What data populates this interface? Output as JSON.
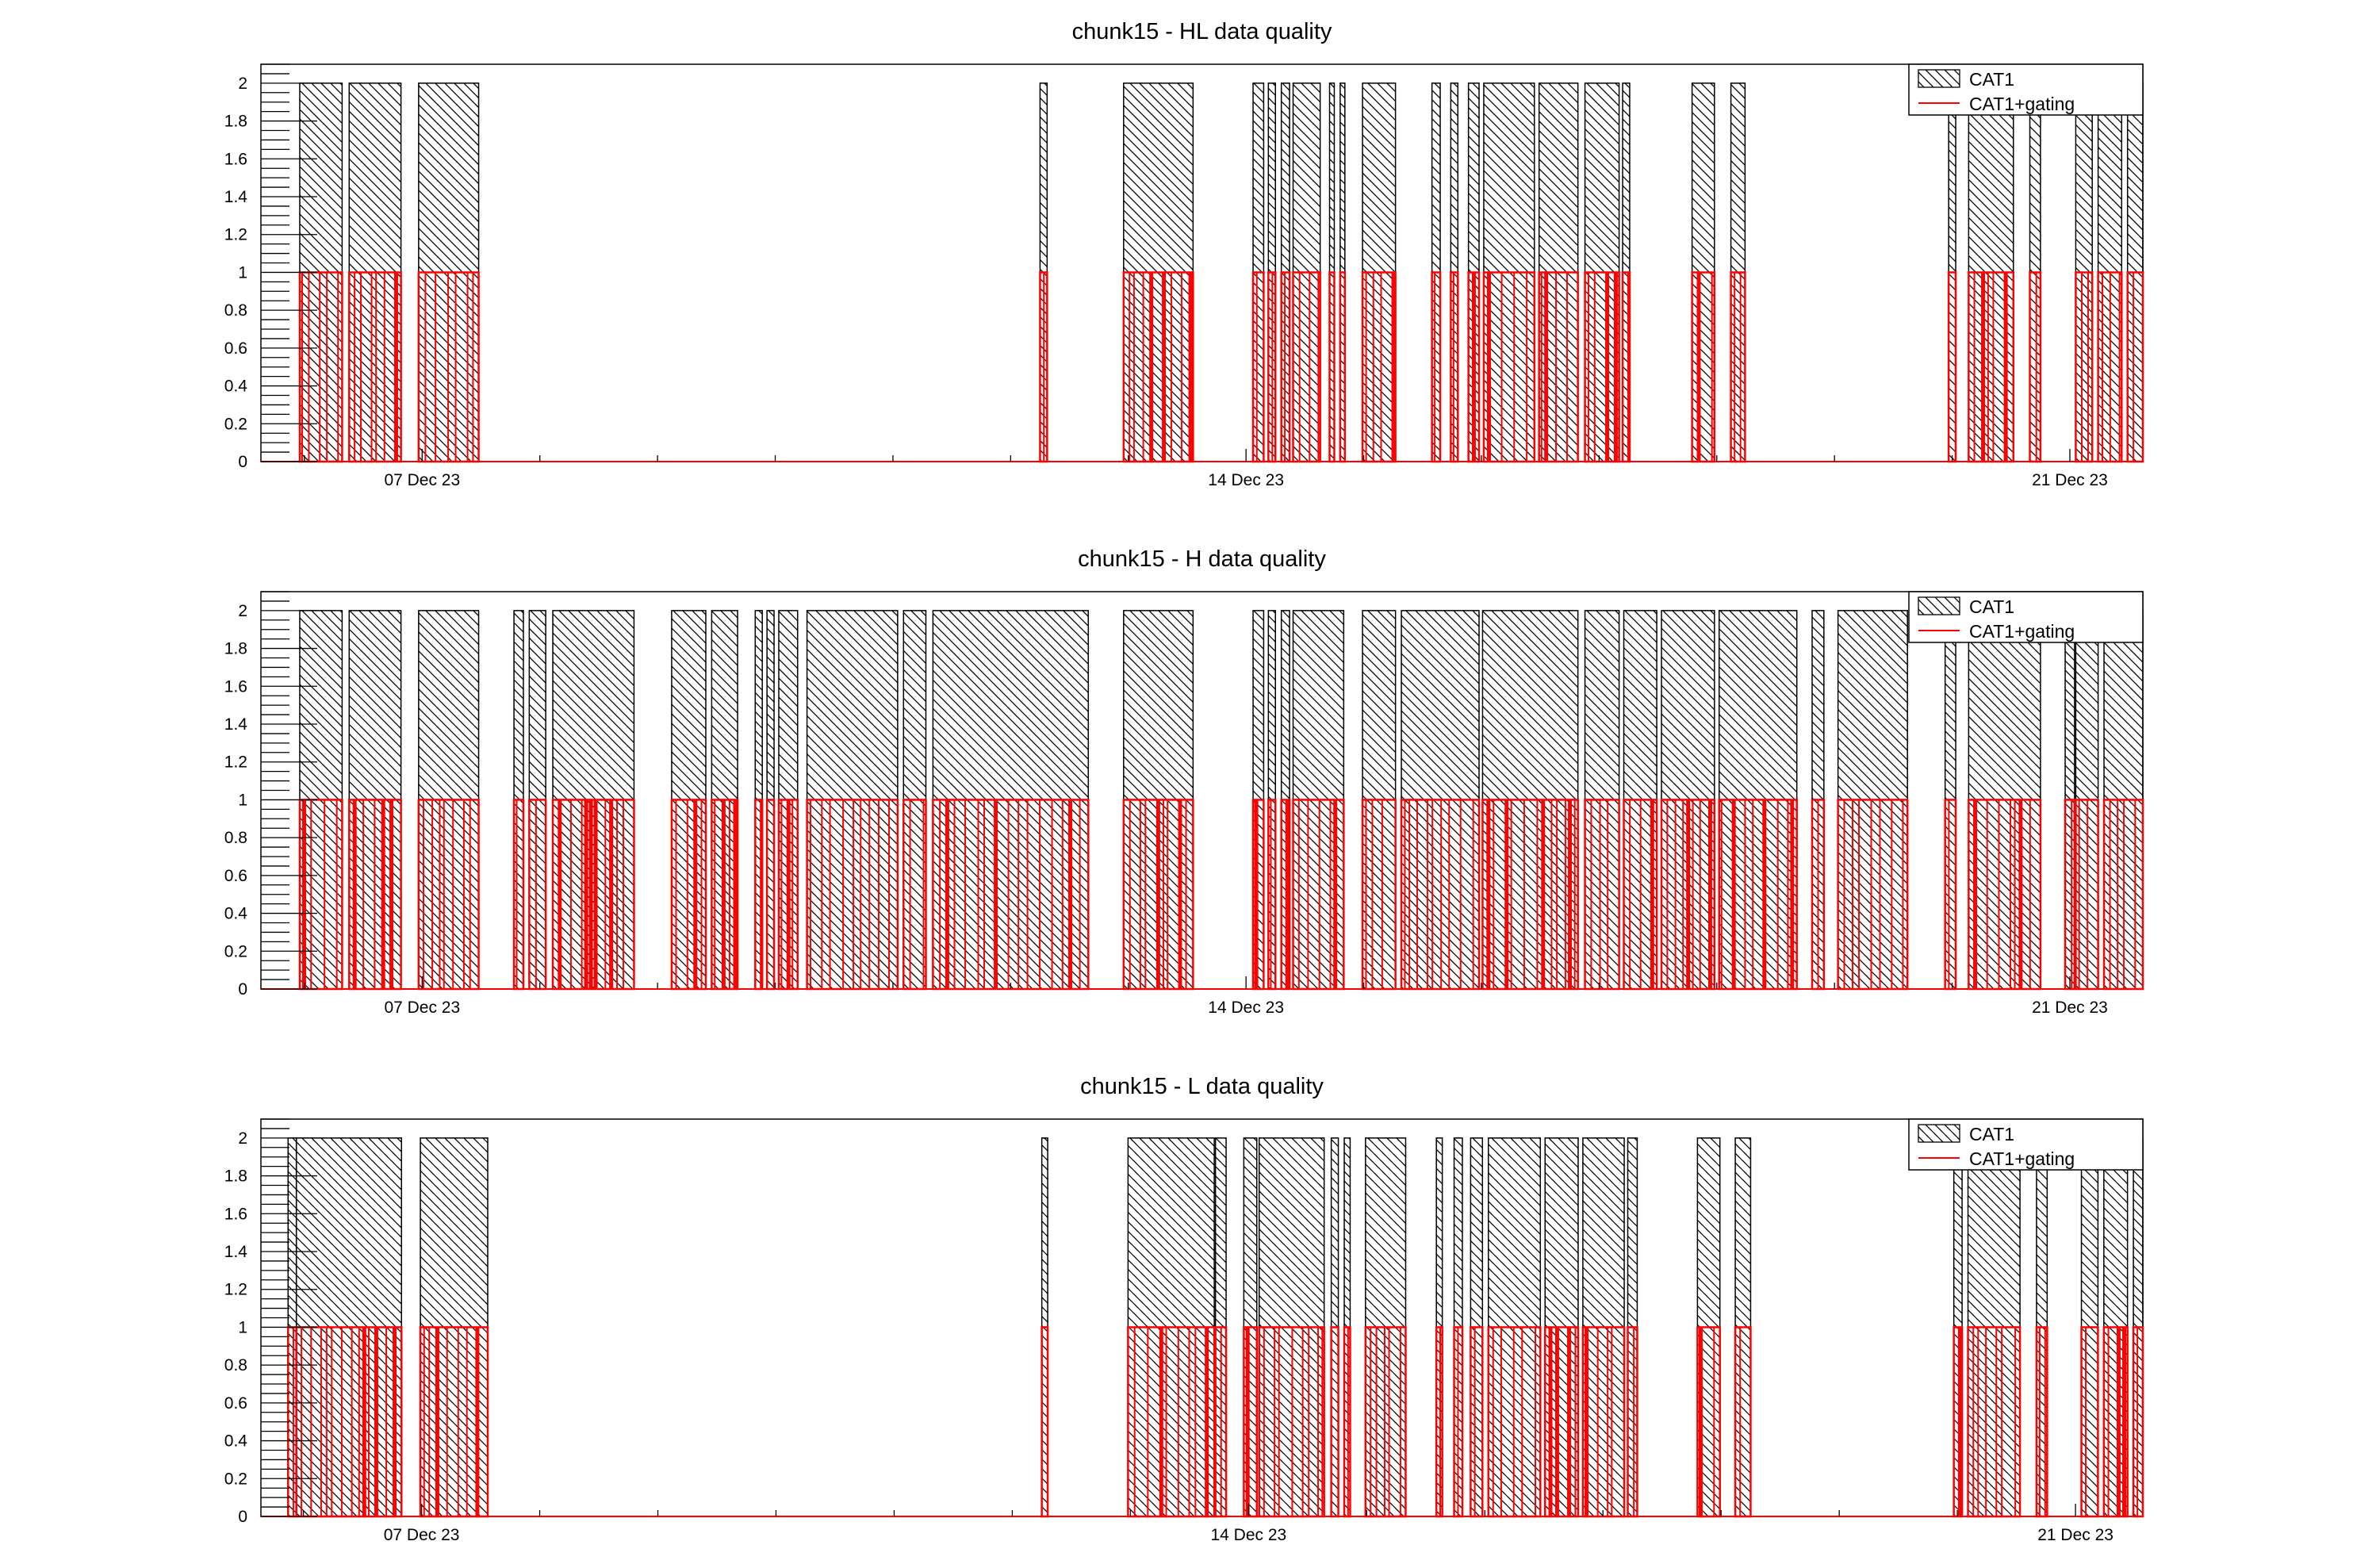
{
  "chart_data": [
    {
      "type": "bar",
      "title": "chunk15 - HL data quality",
      "xlabel": "",
      "ylabel": "",
      "ylim": [
        0,
        2.1
      ],
      "xlim_days": [
        5.63,
        21.62
      ],
      "x_unit": "day of December 2023",
      "yticks": [
        "0",
        "0.2",
        "0.4",
        "0.6",
        "0.8",
        "1",
        "1.2",
        "1.4",
        "1.6",
        "1.8",
        "2"
      ],
      "xticks": [
        {
          "day": 7,
          "label": "07 Dec 23"
        },
        {
          "day": 14,
          "label": "14 Dec 23"
        },
        {
          "day": 21,
          "label": "21 Dec 23"
        }
      ],
      "legend": {
        "position": "top-right",
        "entries": [
          "CAT1",
          "CAT1+gating"
        ]
      },
      "series": [
        {
          "name": "CAT1",
          "value": 2,
          "color": "#000000",
          "style": "hatched"
        },
        {
          "name": "CAT1+gating",
          "value": 1,
          "color": "#ff0000",
          "style": "line"
        }
      ],
      "segments": [
        [
          5.96,
          6.32
        ],
        [
          6.38,
          6.82
        ],
        [
          6.97,
          7.48
        ],
        [
          12.25,
          12.31
        ],
        [
          12.96,
          13.55
        ],
        [
          14.06,
          14.15
        ],
        [
          14.19,
          14.25
        ],
        [
          14.3,
          14.37
        ],
        [
          14.4,
          14.63
        ],
        [
          14.71,
          14.75
        ],
        [
          14.8,
          14.84
        ],
        [
          14.99,
          15.27
        ],
        [
          15.58,
          15.65
        ],
        [
          15.74,
          15.8
        ],
        [
          15.89,
          15.98
        ],
        [
          16.02,
          16.45
        ],
        [
          16.49,
          16.82
        ],
        [
          16.88,
          17.17
        ],
        [
          17.2,
          17.26
        ],
        [
          17.79,
          17.98
        ],
        [
          18.12,
          18.24
        ],
        [
          19.97,
          20.03
        ],
        [
          20.14,
          20.52
        ],
        [
          20.66,
          20.75
        ],
        [
          21.05,
          21.19
        ],
        [
          21.24,
          21.44
        ],
        [
          21.49,
          21.62
        ]
      ]
    },
    {
      "type": "bar",
      "title": "chunk15 - H data quality",
      "xlabel": "",
      "ylabel": "",
      "ylim": [
        0,
        2.1
      ],
      "xlim_days": [
        5.63,
        21.62
      ],
      "x_unit": "day of December 2023",
      "yticks": [
        "0",
        "0.2",
        "0.4",
        "0.6",
        "0.8",
        "1",
        "1.2",
        "1.4",
        "1.6",
        "1.8",
        "2"
      ],
      "xticks": [
        {
          "day": 7,
          "label": "07 Dec 23"
        },
        {
          "day": 14,
          "label": "14 Dec 23"
        },
        {
          "day": 21,
          "label": "21 Dec 23"
        }
      ],
      "legend": {
        "position": "top-right",
        "entries": [
          "CAT1",
          "CAT1+gating"
        ]
      },
      "series": [
        {
          "name": "CAT1",
          "value": 2,
          "color": "#000000",
          "style": "hatched"
        },
        {
          "name": "CAT1+gating",
          "value": 1,
          "color": "#ff0000",
          "style": "line"
        }
      ],
      "segments": [
        [
          5.96,
          6.32
        ],
        [
          6.38,
          6.82
        ],
        [
          6.97,
          7.48
        ],
        [
          7.78,
          7.86
        ],
        [
          7.91,
          8.05
        ],
        [
          8.11,
          8.8
        ],
        [
          9.12,
          9.41
        ],
        [
          9.46,
          9.68
        ],
        [
          9.83,
          9.89
        ],
        [
          9.93,
          9.99
        ],
        [
          10.03,
          10.19
        ],
        [
          10.27,
          11.04
        ],
        [
          11.09,
          11.28
        ],
        [
          11.34,
          12.66
        ],
        [
          12.96,
          13.55
        ],
        [
          14.06,
          14.15
        ],
        [
          14.19,
          14.25
        ],
        [
          14.3,
          14.37
        ],
        [
          14.4,
          14.83
        ],
        [
          14.99,
          15.27
        ],
        [
          15.32,
          15.98
        ],
        [
          16.01,
          16.82
        ],
        [
          16.88,
          17.17
        ],
        [
          17.21,
          17.49
        ],
        [
          17.53,
          17.98
        ],
        [
          18.02,
          18.68
        ],
        [
          18.81,
          18.91
        ],
        [
          19.03,
          19.62
        ],
        [
          19.94,
          20.03
        ],
        [
          20.14,
          20.75
        ],
        [
          20.96,
          21.04
        ],
        [
          21.05,
          21.24
        ],
        [
          21.29,
          21.62
        ]
      ]
    },
    {
      "type": "bar",
      "title": "chunk15 - L data quality",
      "xlabel": "",
      "ylabel": "",
      "ylim": [
        0,
        2.1
      ],
      "xlim_days": [
        5.64,
        21.57
      ],
      "x_unit": "day of December 2023",
      "yticks": [
        "0",
        "0.2",
        "0.4",
        "0.6",
        "0.8",
        "1",
        "1.2",
        "1.4",
        "1.6",
        "1.8",
        "2"
      ],
      "xticks": [
        {
          "day": 7,
          "label": "07 Dec 23"
        },
        {
          "day": 14,
          "label": "14 Dec 23"
        },
        {
          "day": 21,
          "label": "21 Dec 23"
        }
      ],
      "legend": {
        "position": "top-right",
        "entries": [
          "CAT1",
          "CAT1+gating"
        ]
      },
      "series": [
        {
          "name": "CAT1",
          "value": 2,
          "color": "#000000",
          "style": "hatched"
        },
        {
          "name": "CAT1+gating",
          "value": 1,
          "color": "#ff0000",
          "style": "line"
        }
      ],
      "segments": [
        [
          5.87,
          5.94
        ],
        [
          5.94,
          6.83
        ],
        [
          6.99,
          7.56
        ],
        [
          12.25,
          12.3
        ],
        [
          12.98,
          13.71
        ],
        [
          13.72,
          13.81
        ],
        [
          13.96,
          14.07
        ],
        [
          14.09,
          14.64
        ],
        [
          14.7,
          14.76
        ],
        [
          14.81,
          14.86
        ],
        [
          14.99,
          15.33
        ],
        [
          15.59,
          15.64
        ],
        [
          15.74,
          15.81
        ],
        [
          15.88,
          15.98
        ],
        [
          16.03,
          16.47
        ],
        [
          16.51,
          16.79
        ],
        [
          16.83,
          17.18
        ],
        [
          17.21,
          17.29
        ],
        [
          17.8,
          17.99
        ],
        [
          18.12,
          18.25
        ],
        [
          19.97,
          20.04
        ],
        [
          20.09,
          20.53
        ],
        [
          20.67,
          20.76
        ],
        [
          21.05,
          21.19
        ],
        [
          21.24,
          21.44
        ],
        [
          21.49,
          21.57
        ]
      ]
    }
  ]
}
